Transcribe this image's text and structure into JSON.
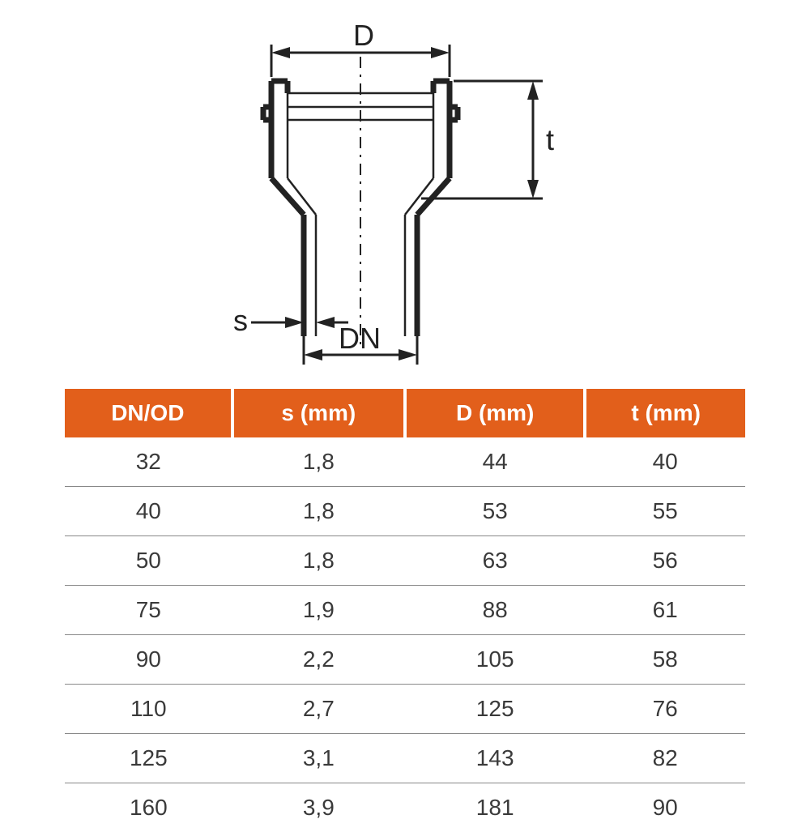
{
  "diagram": {
    "labels": {
      "D": "D",
      "t": "t",
      "s": "s",
      "DN": "DN"
    },
    "colors": {
      "line": "#222222",
      "background": "#ffffff"
    },
    "label_fontsize": 36,
    "line_width_thick": 7,
    "line_width_thin": 2.5,
    "line_width_dim": 3
  },
  "table": {
    "type": "table",
    "header_bg": "#e25f1b",
    "header_fg": "#ffffff",
    "cell_fg": "#3a3a3a",
    "border_color": "#888888",
    "header_fontsize": 28,
    "cell_fontsize": 28,
    "columns": [
      "DN/OD",
      "s (mm)",
      "D (mm)",
      "t (mm)"
    ],
    "rows": [
      [
        "32",
        "1,8",
        "44",
        "40"
      ],
      [
        "40",
        "1,8",
        "53",
        "55"
      ],
      [
        "50",
        "1,8",
        "63",
        "56"
      ],
      [
        "75",
        "1,9",
        "88",
        "61"
      ],
      [
        "90",
        "2,2",
        "105",
        "58"
      ],
      [
        "110",
        "2,7",
        "125",
        "76"
      ],
      [
        "125",
        "3,1",
        "143",
        "82"
      ],
      [
        "160",
        "3,9",
        "181",
        "90"
      ]
    ]
  }
}
